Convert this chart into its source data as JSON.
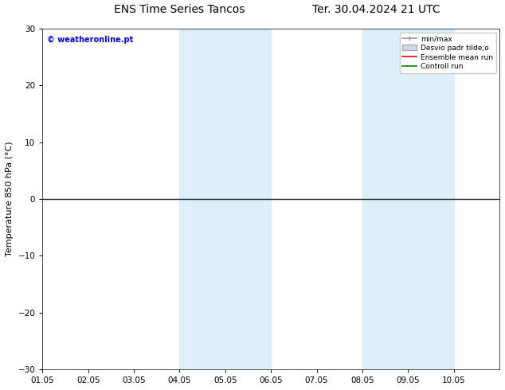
{
  "title_left": "ENS Time Series Tancos",
  "title_right": "Ter. 30.04.2024 21 UTC",
  "ylabel": "Temperature 850 hPa (°C)",
  "watermark": "© weatheronline.pt",
  "xlim_dates": [
    "01.05",
    "02.05",
    "03.05",
    "04.05",
    "05.05",
    "06.05",
    "07.05",
    "08.05",
    "09.05",
    "10.05"
  ],
  "ylim": [
    -30,
    30
  ],
  "yticks": [
    -30,
    -20,
    -10,
    0,
    10,
    20,
    30
  ],
  "shaded_bands": [
    {
      "xstart": 3.0,
      "xend": 4.0,
      "color": "#ddeef8"
    },
    {
      "xstart": 4.0,
      "xend": 5.0,
      "color": "#ddeef8"
    },
    {
      "xstart": 7.0,
      "xend": 8.0,
      "color": "#ddeef8"
    },
    {
      "xstart": 8.0,
      "xend": 9.0,
      "color": "#ddeef8"
    }
  ],
  "hline_y": 0,
  "hline_color": "#222222",
  "legend_labels": [
    "min/max",
    "Desvio padr tilde;o",
    "Ensemble mean run",
    "Controll run"
  ],
  "legend_colors": [
    "#999999",
    "#ccddee",
    "red",
    "green"
  ],
  "bg_color": "#ffffff",
  "plot_bg_color": "#ffffff",
  "title_fontsize": 10,
  "tick_fontsize": 7.5,
  "label_fontsize": 8,
  "watermark_color": "#0000cc"
}
